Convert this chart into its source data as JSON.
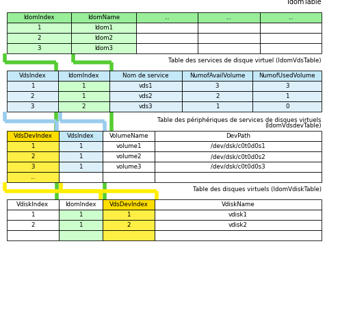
{
  "idom_table": {
    "title": "IdomTable",
    "headers": [
      "IdomIndex",
      "IdomName",
      "...",
      "...",
      "..."
    ],
    "rows": [
      [
        "1",
        "ldom1",
        "",
        "",
        ""
      ],
      [
        "2",
        "ldom2",
        "",
        "",
        ""
      ],
      [
        "3",
        "ldom3",
        "",
        "",
        ""
      ]
    ]
  },
  "vds_table": {
    "title": "Table des services de disque virtuel (IdomVdsTable)",
    "headers": [
      "VdsIndex",
      "IdomIndex",
      "Nom de service",
      "NumofAvailVolume",
      "NumofUsedVolume"
    ],
    "rows": [
      [
        "1",
        "1",
        "vds1",
        "3",
        "3"
      ],
      [
        "2",
        "1",
        "vds2",
        "2",
        "1"
      ],
      [
        "3",
        "2",
        "vds3",
        "1",
        "0"
      ]
    ]
  },
  "vdsdev_table": {
    "title_line1": "Table des périphériques de services de disques virtuels",
    "title_line2": "(IdomVdsdevTable)",
    "headers": [
      "VdsDevIndex",
      "VdsIndex",
      "VolumeName",
      "DevPath"
    ],
    "rows": [
      [
        "1",
        "1",
        "volume1",
        "/dev/dsk/c0t0d0s1"
      ],
      [
        "2",
        "1",
        "volume2",
        "/dev/dsk/c0t0d0s2"
      ],
      [
        "3",
        "1",
        "volume3",
        "/dev/dsk/c0t0d0s3"
      ],
      [
        "...",
        "",
        "",
        ""
      ]
    ]
  },
  "vdisk_table": {
    "title": "Table des disques virtuels (IdomVdiskTable)",
    "headers": [
      "VdiskIndex",
      "IdomIndex",
      "VdsDevIndex",
      "VdiskName"
    ],
    "rows": [
      [
        "1",
        "1",
        "1",
        "vdisk1"
      ],
      [
        "2",
        "1",
        "2",
        "vdisk2"
      ],
      [
        "",
        "",
        "",
        ""
      ]
    ]
  },
  "colors": {
    "green_header": "#99ee99",
    "green_cell": "#ccffcc",
    "blue_header": "#c5e8f7",
    "blue_cell": "#ddf0fa",
    "yellow_header": "#ffdd00",
    "yellow_cell": "#ffee44",
    "white": "#ffffff",
    "black": "#000000",
    "green_conn": "#55cc33",
    "blue_conn": "#99ccee",
    "yellow_conn": "#ffee00"
  },
  "bg_color": "#ffffff"
}
